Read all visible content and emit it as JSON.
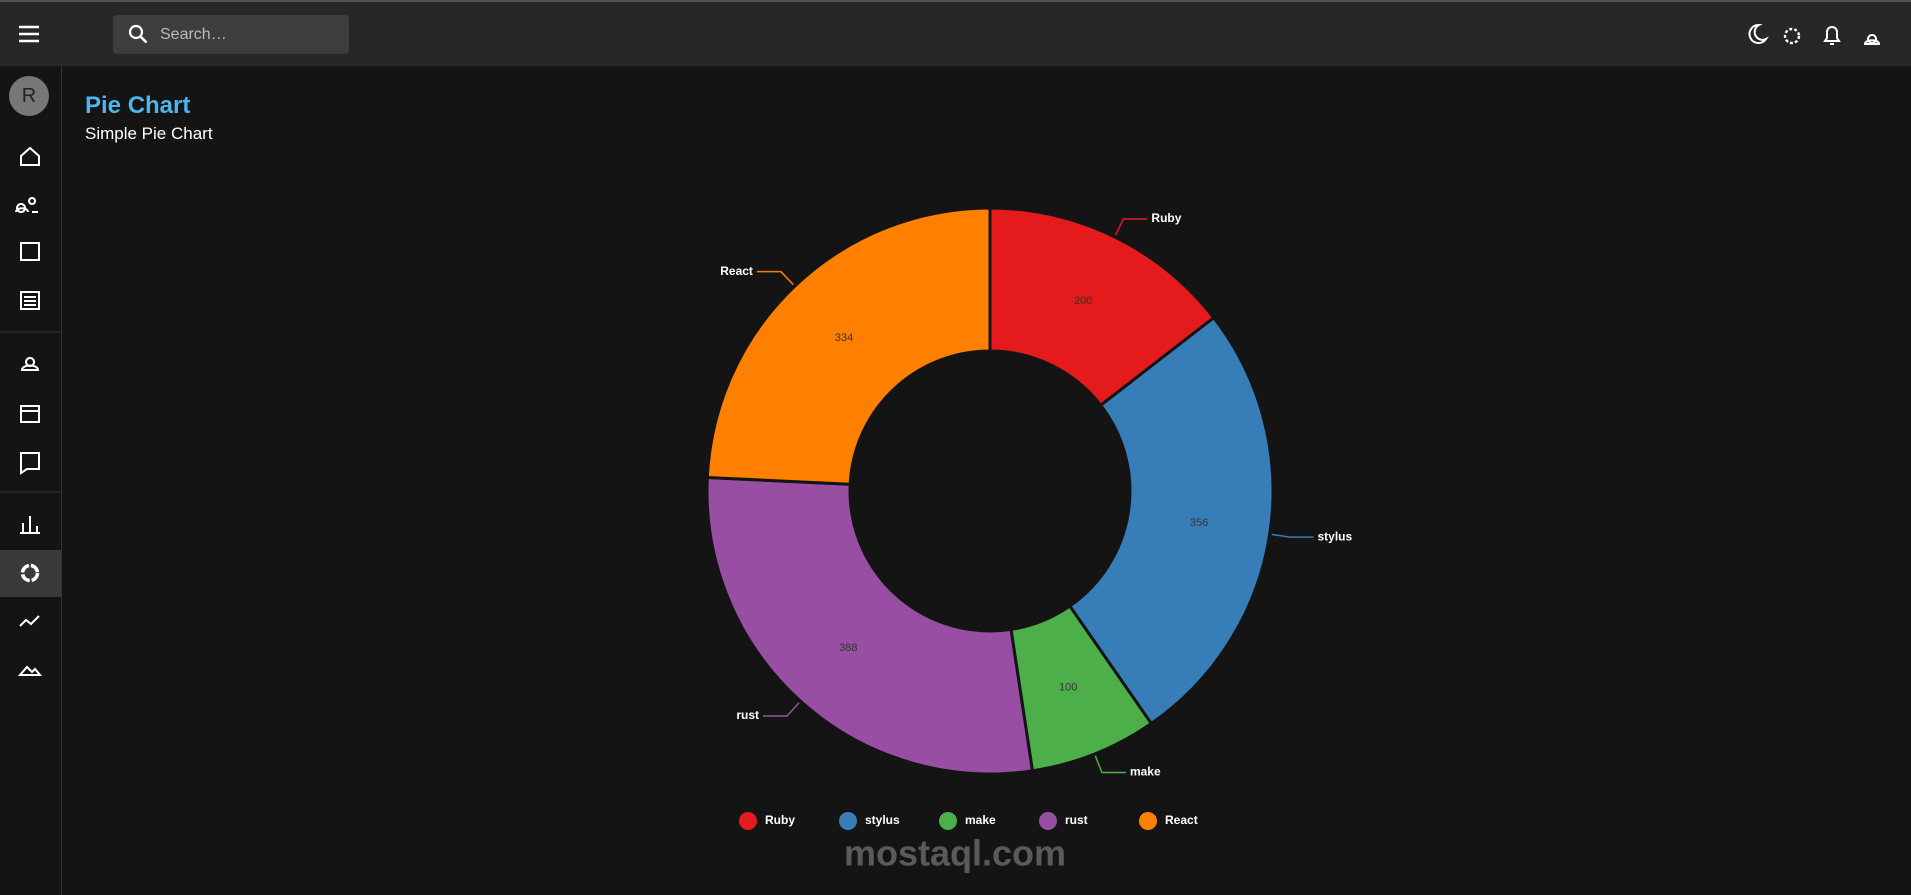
{
  "header": {
    "search_placeholder": "Search…"
  },
  "sidebar": {
    "avatar": "R"
  },
  "page": {
    "title": "Pie Chart",
    "subtitle": "Simple Pie Chart"
  },
  "chart_data": {
    "type": "pie",
    "categories": [
      "Ruby",
      "stylus",
      "make",
      "rust",
      "React"
    ],
    "values": [
      200,
      356,
      100,
      388,
      334
    ],
    "colors": [
      "#e41a1c",
      "#377eb8",
      "#4daf4a",
      "#984ea3",
      "#ff7f00"
    ],
    "legend": "bottom"
  },
  "watermark": "mostaql.com"
}
